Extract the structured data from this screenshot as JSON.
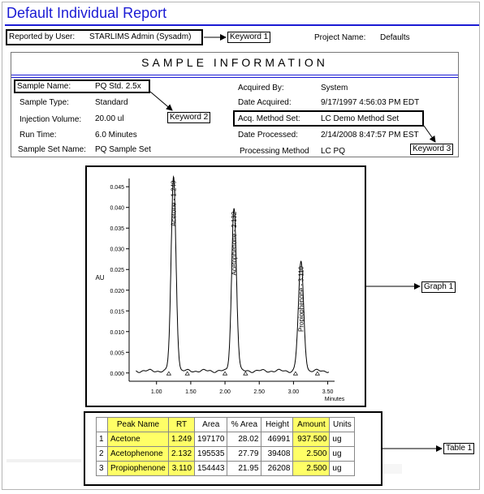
{
  "report": {
    "title": "Default Individual Report",
    "reported_by_label": "Reported by User:",
    "reported_by_value": "STARLIMS Admin (Sysadm)",
    "project_label": "Project Name:",
    "project_value": "Defaults"
  },
  "sample_info": {
    "heading": "SAMPLE INFORMATION",
    "left": [
      {
        "label": "Sample Name:",
        "value": "PQ Std. 2.5x"
      },
      {
        "label": "Sample Type:",
        "value": "Standard"
      },
      {
        "label": "Injection Volume:",
        "value": "20.00 ul"
      },
      {
        "label": "Run Time:",
        "value": "6.0 Minutes"
      },
      {
        "label": "Sample Set Name:",
        "value": "PQ Sample Set"
      }
    ],
    "right": [
      {
        "label": "Acquired By:",
        "value": "System"
      },
      {
        "label": "Date Acquired:",
        "value": "9/17/1997 4:56:03 PM EDT"
      },
      {
        "label": "Acq. Method Set:",
        "value": "LC Demo Method Set"
      },
      {
        "label": "Date Processed:",
        "value": "2/14/2008 8:47:57 PM EST"
      },
      {
        "label": "Processing Method",
        "value": "LC PQ"
      }
    ]
  },
  "callouts": {
    "keyword1": "Keyword 1",
    "keyword2": "Keyword 2",
    "keyword3": "Keyword 3",
    "graph1": "Graph 1",
    "table1": "Table 1"
  },
  "chart_data": {
    "type": "line",
    "title": "",
    "xlabel": "Minutes",
    "ylabel": "AU",
    "xlim": [
      0.6,
      3.6
    ],
    "ylim": [
      -0.002,
      0.047
    ],
    "xticks": [
      "1.00",
      "1.50",
      "2.00",
      "2.50",
      "3.00",
      "3.50"
    ],
    "xtick_values": [
      1.0,
      1.5,
      2.0,
      2.5,
      3.0,
      3.5
    ],
    "yticks": [
      "0.000",
      "0.005",
      "0.010",
      "0.015",
      "0.020",
      "0.025",
      "0.030",
      "0.035",
      "0.040",
      "0.045"
    ],
    "ytick_values": [
      0,
      0.005,
      0.01,
      0.015,
      0.02,
      0.025,
      0.03,
      0.035,
      0.04,
      0.045
    ],
    "baseline": 0.0005,
    "peaks": [
      {
        "label": "Acetone - 1.249",
        "rt": 1.249,
        "height": 0.0469,
        "width": 0.035
      },
      {
        "label": "Acetophenone - 2.132",
        "rt": 2.132,
        "height": 0.0394,
        "width": 0.035
      },
      {
        "label": "Propiophenone - 3.110",
        "rt": 3.11,
        "height": 0.0262,
        "width": 0.038
      }
    ],
    "markers_x": [
      1.18,
      1.45,
      2.0,
      2.3,
      3.03,
      3.35
    ],
    "grid": false,
    "legend": "none"
  },
  "table": {
    "headers": [
      "",
      "Peak Name",
      "RT",
      "Area",
      "% Area",
      "Height",
      "Amount",
      "Units"
    ],
    "rows": [
      [
        "1",
        "Acetone",
        "1.249",
        "197170",
        "28.02",
        "46991",
        "937.500",
        "ug"
      ],
      [
        "2",
        "Acetophenone",
        "2.132",
        "195535",
        "27.79",
        "39408",
        "2.500",
        "ug"
      ],
      [
        "3",
        "Propiophenone",
        "3.110",
        "154443",
        "21.95",
        "26208",
        "2.500",
        "ug"
      ]
    ]
  },
  "colors": {
    "title": "#1b1bd4",
    "highlight": "#ffff66"
  }
}
